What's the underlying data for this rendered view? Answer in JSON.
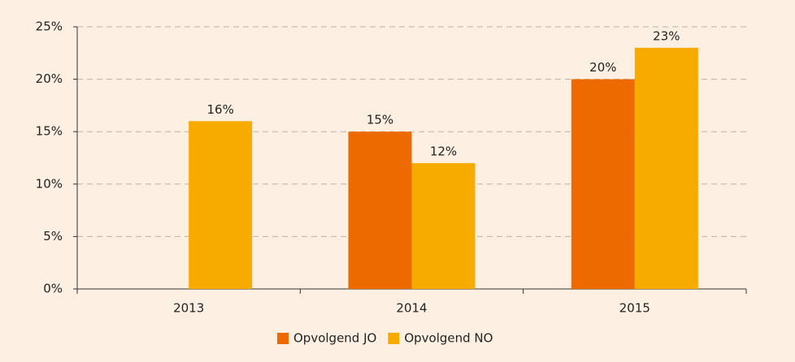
{
  "chart_data": {
    "type": "bar",
    "categories": [
      "2013",
      "2014",
      "2015"
    ],
    "series": [
      {
        "name": "Opvolgend JO",
        "color": "#ec6a00",
        "values": [
          null,
          15,
          20
        ],
        "value_labels": [
          null,
          "15%",
          "20%"
        ]
      },
      {
        "name": "Opvolgend NO",
        "color": "#f7aa00",
        "values": [
          16,
          12,
          23
        ],
        "value_labels": [
          "16%",
          "12%",
          "23%"
        ]
      }
    ],
    "ylim": [
      0,
      25
    ],
    "yticks": [
      {
        "value": 0,
        "label": "0%"
      },
      {
        "value": 5,
        "label": "5%"
      },
      {
        "value": 10,
        "label": "10%"
      },
      {
        "value": 15,
        "label": "15%"
      },
      {
        "value": 20,
        "label": "20%"
      },
      {
        "value": 25,
        "label": "25%"
      }
    ],
    "grid": true,
    "legend": "bottom"
  }
}
